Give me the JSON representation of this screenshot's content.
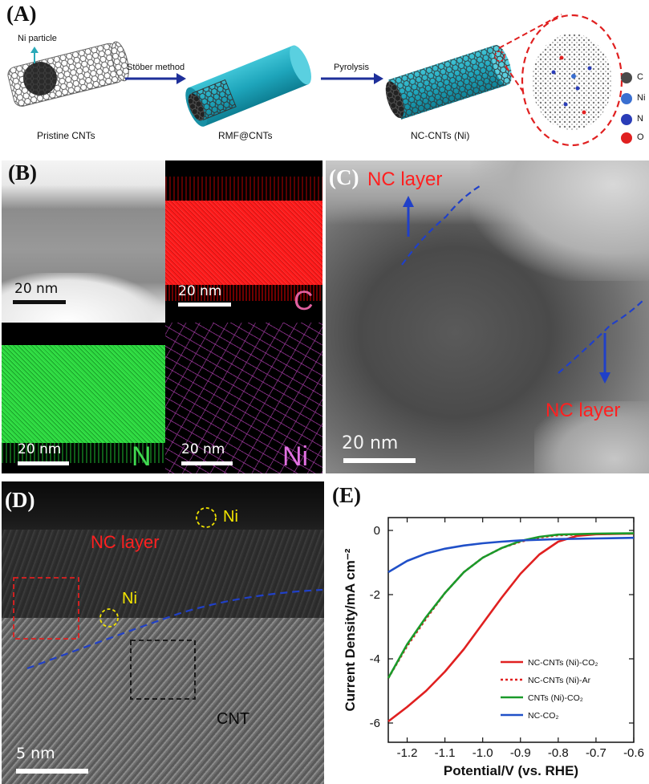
{
  "panels": {
    "a": {
      "letter": "(A)",
      "labels": {
        "ni_particle": "Ni particle",
        "pristine": "Pristine CNTs",
        "step1": "Stöber method",
        "rmf": "RMF@CNTs",
        "step2": "Pyrolysis",
        "ncc": "NC-CNTs (Ni)"
      },
      "legend": [
        {
          "symbol": "C",
          "color": "#4a4a4a"
        },
        {
          "symbol": "Ni",
          "color": "#3a6fd0"
        },
        {
          "symbol": "N",
          "color": "#2a3db8"
        },
        {
          "symbol": "O",
          "color": "#e02020"
        }
      ]
    },
    "b": {
      "letter": "(B)",
      "scale": "20 nm",
      "maps": [
        "C",
        "N",
        "Ni"
      ],
      "map_colors": {
        "C": "#e02020",
        "N": "#27c43a",
        "Ni": "#d050d0"
      }
    },
    "c": {
      "letter": "(C)",
      "scale": "20 nm",
      "label": "NC layer"
    },
    "d": {
      "letter": "(D)",
      "scale": "5 nm",
      "nc_label": "NC layer",
      "ni_label": "Ni",
      "cnt_label": "CNT"
    },
    "e": {
      "letter": "(E)"
    }
  },
  "chart_data": {
    "type": "line",
    "xlabel": "Potential/V (vs. RHE)",
    "ylabel": "Current Density/mA cm⁻²",
    "xlim": [
      -1.25,
      -0.6
    ],
    "ylim": [
      -6.6,
      0.4
    ],
    "xticks": [
      "-1.2",
      "-1.1",
      "-1.0",
      "-0.9",
      "-0.8",
      "-0.7",
      "-0.6"
    ],
    "yticks": [
      "0",
      "-2",
      "-4",
      "-6"
    ],
    "series": [
      {
        "name": "NC-CNTs (Ni)-CO₂",
        "color": "#e02020",
        "dash": "solid",
        "x": [
          -1.25,
          -1.2,
          -1.15,
          -1.1,
          -1.05,
          -1.0,
          -0.95,
          -0.9,
          -0.85,
          -0.8,
          -0.75,
          -0.7,
          -0.6
        ],
        "y": [
          -5.95,
          -5.5,
          -5.0,
          -4.4,
          -3.7,
          -2.9,
          -2.1,
          -1.35,
          -0.75,
          -0.35,
          -0.17,
          -0.12,
          -0.1
        ]
      },
      {
        "name": "NC-CNTs (Ni)-Ar",
        "color": "#e02020",
        "dash": "dot",
        "x": [
          -1.25,
          -1.2,
          -1.15,
          -1.1,
          -1.05,
          -1.0,
          -0.95,
          -0.9,
          -0.85,
          -0.8,
          -0.7,
          -0.6
        ],
        "y": [
          -4.6,
          -3.6,
          -2.75,
          -1.95,
          -1.3,
          -0.85,
          -0.55,
          -0.35,
          -0.22,
          -0.15,
          -0.11,
          -0.1
        ]
      },
      {
        "name": "CNTs (Ni)-CO₂",
        "color": "#1a9a2a",
        "dash": "solid",
        "x": [
          -1.25,
          -1.2,
          -1.15,
          -1.1,
          -1.05,
          -1.0,
          -0.95,
          -0.9,
          -0.85,
          -0.8,
          -0.7,
          -0.6
        ],
        "y": [
          -4.6,
          -3.55,
          -2.7,
          -1.95,
          -1.3,
          -0.85,
          -0.55,
          -0.33,
          -0.2,
          -0.13,
          -0.1,
          -0.09
        ]
      },
      {
        "name": "NC-CO₂",
        "color": "#2050c8",
        "dash": "solid",
        "x": [
          -1.25,
          -1.2,
          -1.15,
          -1.1,
          -1.05,
          -1.0,
          -0.95,
          -0.9,
          -0.8,
          -0.7,
          -0.6
        ],
        "y": [
          -1.3,
          -0.95,
          -0.72,
          -0.57,
          -0.47,
          -0.4,
          -0.35,
          -0.31,
          -0.27,
          -0.25,
          -0.23
        ]
      }
    ]
  }
}
